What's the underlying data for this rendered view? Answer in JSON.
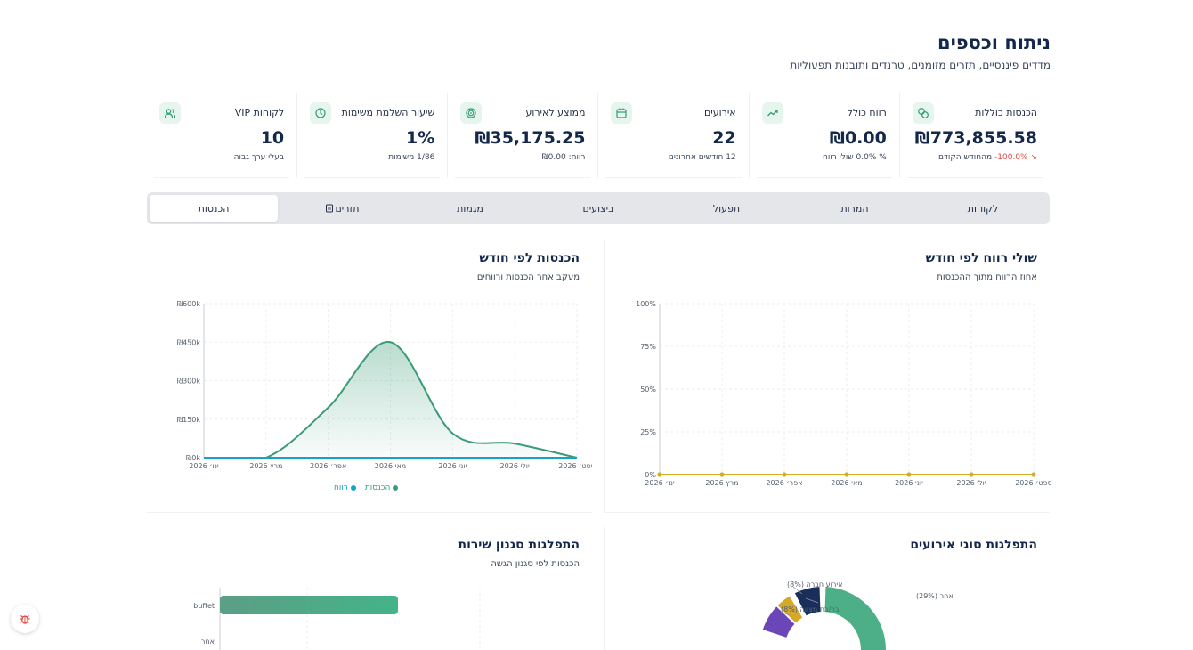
{
  "header": {
    "title": "ניתוח וכספים",
    "subtitle": "מדדים פיננסיים, תזרים מזומנים, טרנדים ותובנות תפעוליות"
  },
  "kpis": [
    {
      "label": "הכנסות כוללות",
      "value": "₪773,855.58",
      "note_pct": "100.0%-",
      "note_text": "מהחודש הקודם",
      "icon": "coins-icon"
    },
    {
      "label": "רווח כולל",
      "value": "₪0.00",
      "note_text": "% 0.0% שולי רווח",
      "icon": "trending-up-icon"
    },
    {
      "label": "אירועים",
      "value": "22",
      "note_text": "12 חודשים אחרונים",
      "icon": "calendar-icon"
    },
    {
      "label": "ממוצע לאירוע",
      "value": "₪35,175.25",
      "note_text": "רווח: ₪0.00",
      "icon": "target-icon"
    },
    {
      "label": "שיעור השלמת משימות",
      "value": "1%",
      "note_text": "1/86 משימות",
      "icon": "clock-icon"
    },
    {
      "label": "לקוחות VIP",
      "value": "10",
      "note_text": "בעלי ערך גבוה",
      "icon": "users-icon"
    }
  ],
  "tabs": [
    {
      "label": "לקוחות",
      "active": false
    },
    {
      "label": "המרות",
      "active": false
    },
    {
      "label": "תפעול",
      "active": false
    },
    {
      "label": "ביצועים",
      "active": false
    },
    {
      "label": "מגמות",
      "active": false
    },
    {
      "label": "תזרים",
      "active": false,
      "icon": "document-icon"
    },
    {
      "label": "הכנסות",
      "active": true
    }
  ],
  "panels": {
    "profit_margin": {
      "title": "שולי רווח לפי חודש",
      "subtitle": "אחוז הרווח מתוך ההכנסות"
    },
    "revenue": {
      "title": "הכנסות לפי חודש",
      "subtitle": "מעקב אחר הכנסות ורווחים"
    },
    "event_types": {
      "title": "התפלגות סוגי אירועים"
    },
    "service_style": {
      "title": "התפלגות סגנון שירות",
      "subtitle": "הכנסות לפי סגנון הגשה"
    }
  },
  "colors": {
    "revenue": "#3a9b76",
    "profit": "#19a2c4",
    "margin": "#d4ae1e",
    "navy": "#1a2e5c",
    "gold": "#d6a828",
    "purple": "#6b46b8",
    "green": "#4caf87",
    "neg": "#e0473d"
  },
  "chart_data": [
    {
      "type": "line",
      "title": "שולי רווח לפי חודש",
      "subtitle": "אחוז הרווח מתוך ההכנסות",
      "categories": [
        "ינו׳ 2026",
        "מרץ 2026",
        "אפר׳ 2026",
        "מאי 2026",
        "יוני 2026",
        "יולי 2026",
        "ספט׳ 2026"
      ],
      "y_ticks": [
        "0%",
        "25%",
        "50%",
        "75%",
        "100%"
      ],
      "ylim": [
        0,
        100
      ],
      "series": [
        {
          "values": [
            0,
            0,
            0,
            0,
            0,
            0,
            0
          ]
        }
      ],
      "grid": true
    },
    {
      "type": "area",
      "title": "הכנסות לפי חודש",
      "subtitle": "מעקב אחר הכנסות ורווחים",
      "categories": [
        "ינו׳ 2026",
        "מרץ 2026",
        "אפר׳ 2026",
        "מאי 2026",
        "יוני 2026",
        "יולי 2026",
        "ספט׳ 2026"
      ],
      "y_ticks": [
        "₪0k",
        "₪150k",
        "₪300k",
        "₪450k",
        "₪600k"
      ],
      "ylim": [
        0,
        600
      ],
      "series": [
        {
          "name": "הכנסות",
          "values": [
            0,
            0,
            195,
            450,
            95,
            55,
            0
          ]
        },
        {
          "name": "רווח",
          "values": [
            0,
            0,
            0,
            0,
            0,
            0,
            0
          ]
        }
      ],
      "legend": "bottom",
      "grid": true
    },
    {
      "type": "pie",
      "title": "התפלגות סוגי אירועים",
      "slices": [
        {
          "label": "אחר (29%)",
          "value": 29
        },
        {
          "label": "אירוע חברה (8%)",
          "value": 8
        },
        {
          "label": "בר/בת מצווה (8%)",
          "value": 8
        }
      ]
    },
    {
      "type": "bar",
      "title": "התפלגות סגנון שירות",
      "subtitle": "הכנסות לפי סגנון הגשה",
      "categories": [
        "buffet",
        "אחר"
      ]
    }
  ]
}
